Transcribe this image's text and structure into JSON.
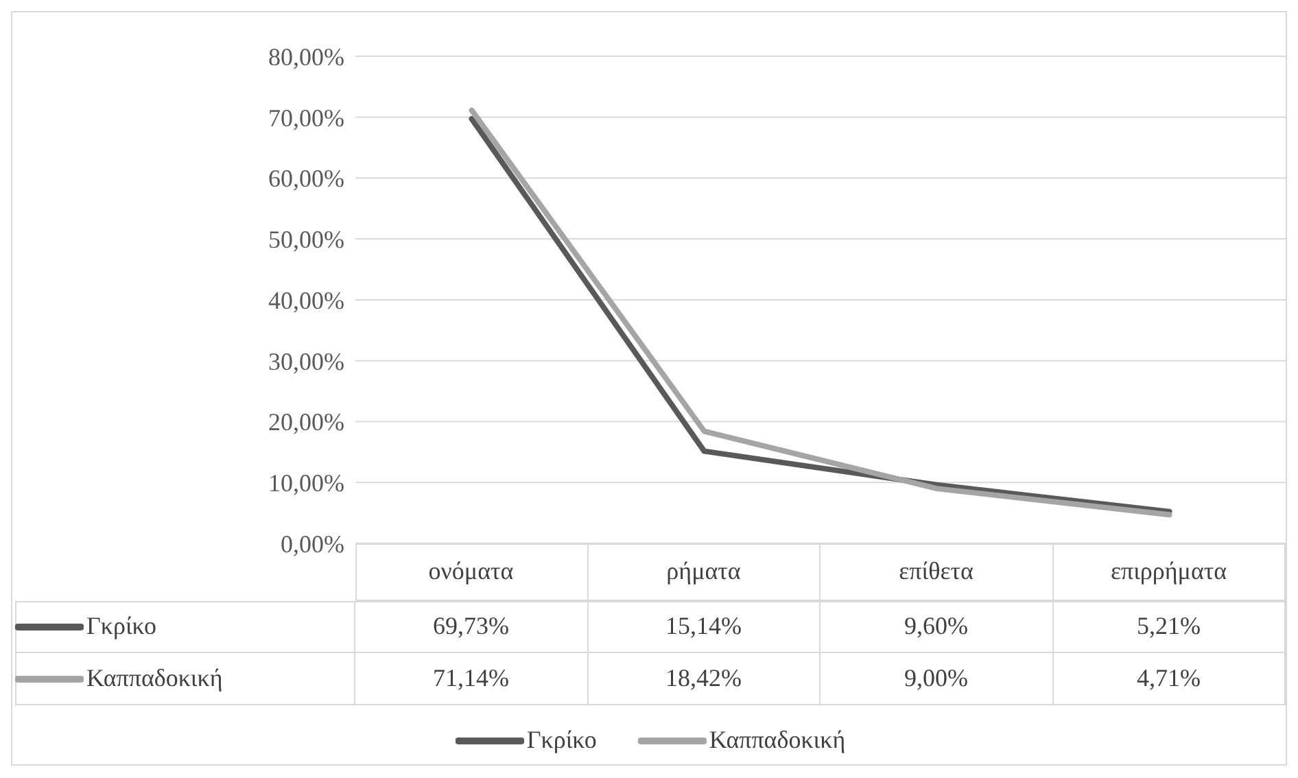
{
  "chart_data": {
    "type": "line",
    "categories": [
      "ονόματα",
      "ρήματα",
      "επίθετα",
      "επιρρήματα"
    ],
    "series": [
      {
        "name": "Γκρίκο",
        "color": "#595959",
        "values": [
          69.73,
          15.14,
          9.6,
          5.21
        ],
        "value_labels": [
          "69,73%",
          "15,14%",
          "9,60%",
          "5,21%"
        ]
      },
      {
        "name": "Καππαδοκική",
        "color": "#a5a5a5",
        "values": [
          71.14,
          18.42,
          9.0,
          4.71
        ],
        "value_labels": [
          "71,14%",
          "18,42%",
          "9,00%",
          "4,71%"
        ]
      }
    ],
    "ylim": [
      0,
      80
    ],
    "yticks": [
      {
        "value": 0,
        "label": "0,00%"
      },
      {
        "value": 10,
        "label": "10,00%"
      },
      {
        "value": 20,
        "label": "20,00%"
      },
      {
        "value": 30,
        "label": "30,00%"
      },
      {
        "value": 40,
        "label": "40,00%"
      },
      {
        "value": 50,
        "label": "50,00%"
      },
      {
        "value": 60,
        "label": "60,00%"
      },
      {
        "value": 70,
        "label": "70,00%"
      },
      {
        "value": 80,
        "label": "80,00%"
      }
    ],
    "grid": "y",
    "legend": "bottom",
    "line_style": "solid"
  }
}
